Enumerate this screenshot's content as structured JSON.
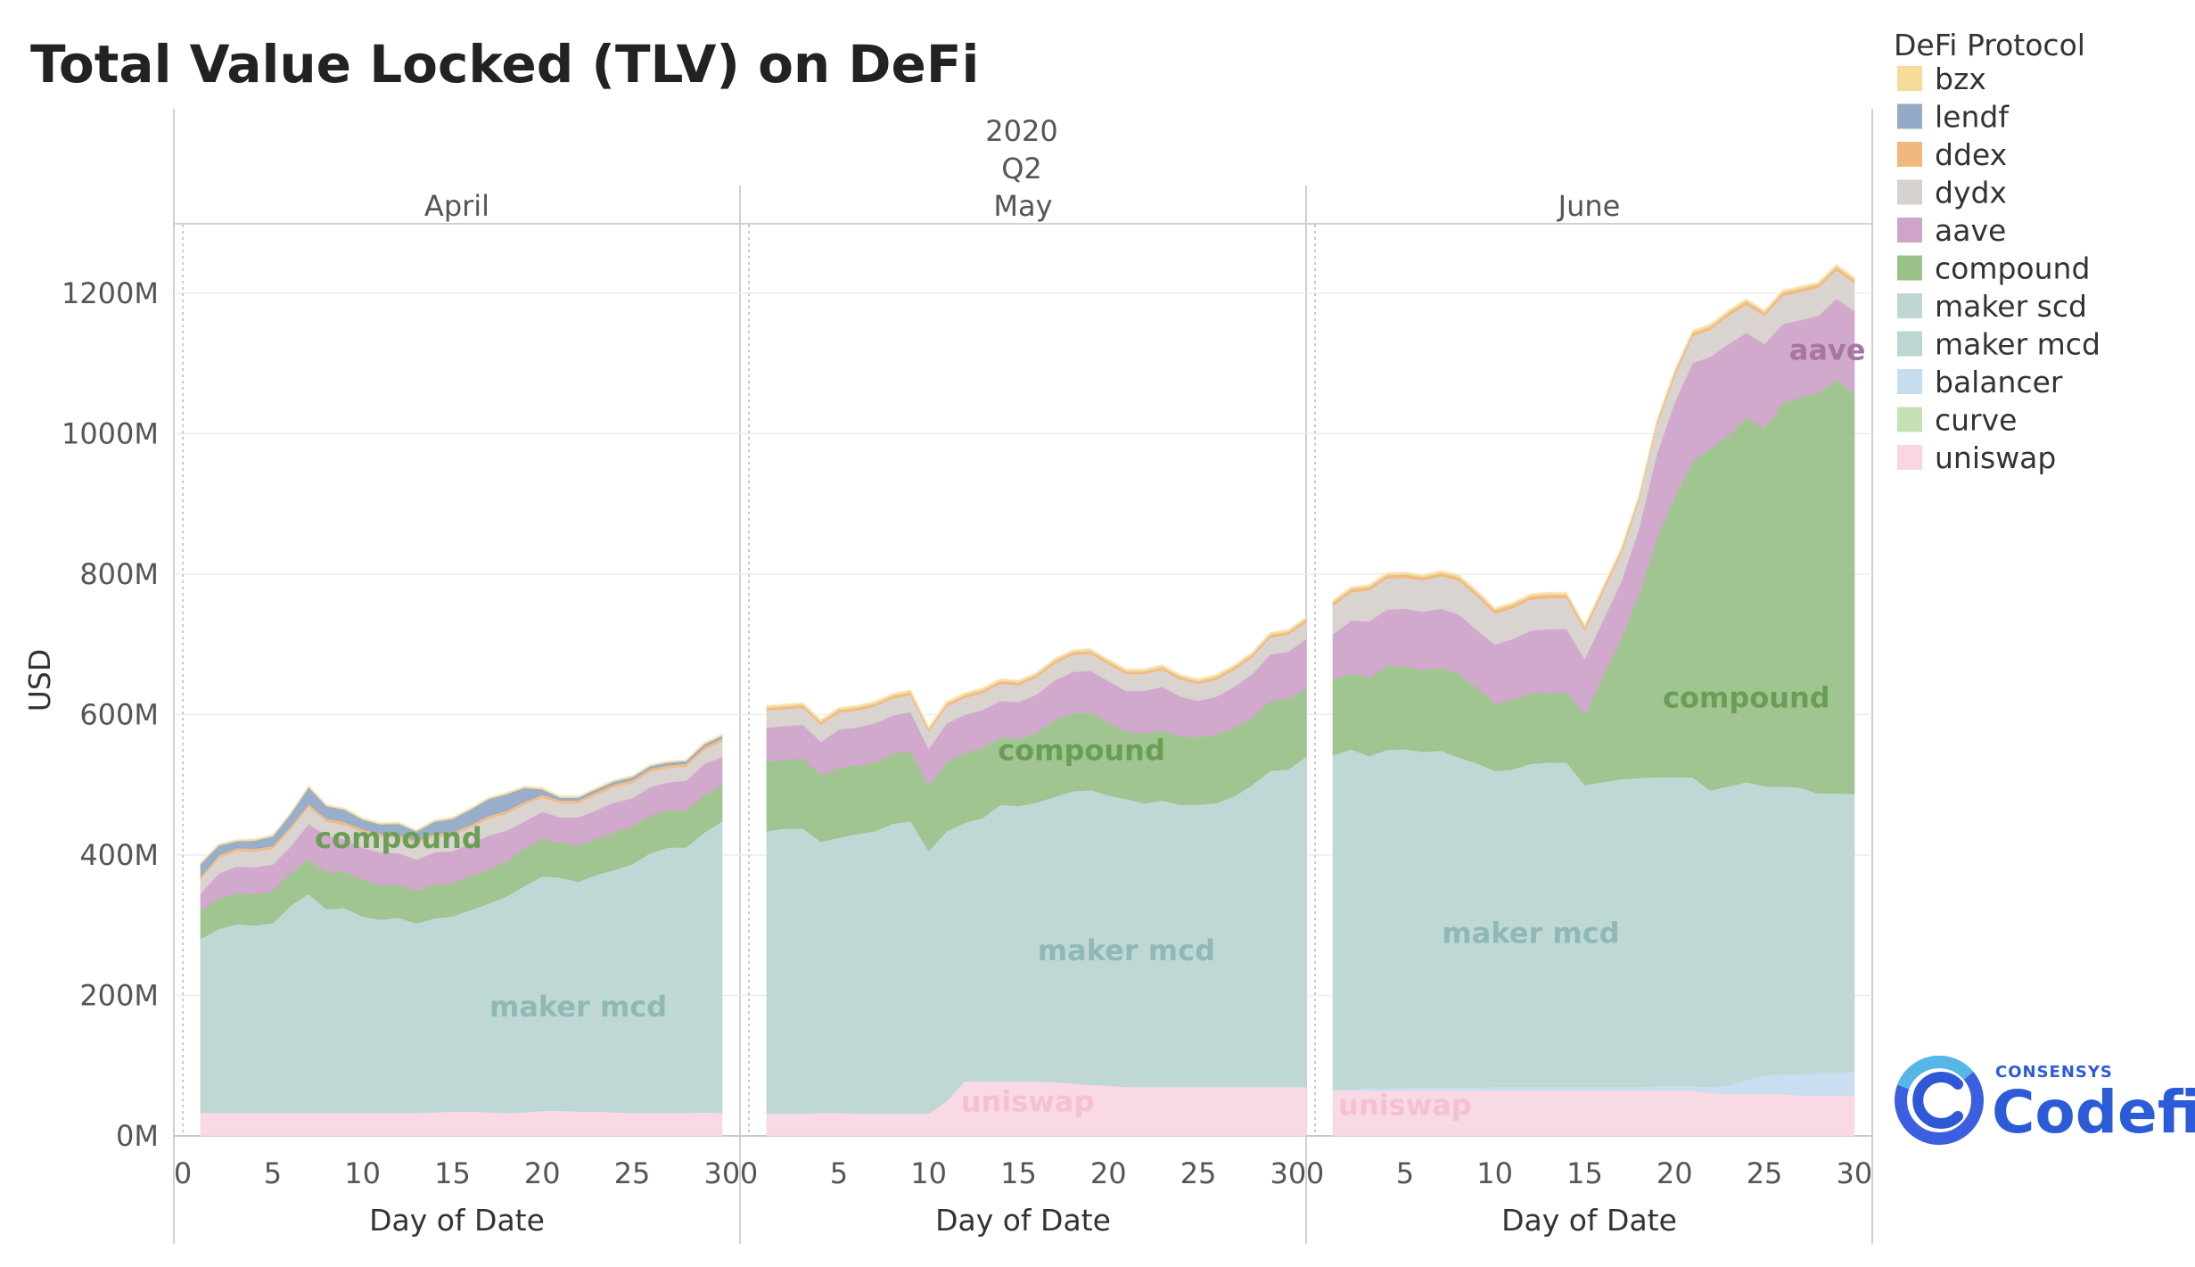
{
  "title": "Total Value Locked (TLV) on DeFi",
  "header": {
    "year": "2020",
    "quarter": "Q2"
  },
  "legend": {
    "title": "DeFi Protocol",
    "items": [
      {
        "label": "bzx",
        "color": "#f5dc9a"
      },
      {
        "label": "lendf",
        "color": "#93abc6"
      },
      {
        "label": "ddex",
        "color": "#f1b77f"
      },
      {
        "label": "dydx",
        "color": "#d7d2ce"
      },
      {
        "label": "aave",
        "color": "#cfa4c9"
      },
      {
        "label": "compound",
        "color": "#9cc28b"
      },
      {
        "label": "maker scd",
        "color": "#bfd6d3"
      },
      {
        "label": "maker mcd",
        "color": "#bcd6d3"
      },
      {
        "label": "balancer",
        "color": "#c6dcef"
      },
      {
        "label": "curve",
        "color": "#c6e2b5"
      },
      {
        "label": "uniswap",
        "color": "#f8d7e3"
      }
    ]
  },
  "logo": {
    "small": "CONSENSYS",
    "big": "Codefi"
  },
  "chart_data": {
    "type": "area",
    "stacked": true,
    "title": "Total Value Locked (TLV) on DeFi",
    "ylabel": "USD",
    "xlabel": "Day of Date",
    "ylim": [
      0,
      1300
    ],
    "yticks": [
      "0M",
      "200M",
      "400M",
      "600M",
      "800M",
      "1000M",
      "1200M"
    ],
    "xticks": [
      "0",
      "5",
      "10",
      "15",
      "20",
      "25",
      "30"
    ],
    "stack_order": [
      "uniswap",
      "curve",
      "balancer",
      "maker mcd",
      "maker scd",
      "compound",
      "aave",
      "dydx",
      "ddex",
      "lendf",
      "bzx"
    ],
    "panels": [
      {
        "month": "April",
        "days": [
          1,
          2,
          3,
          4,
          5,
          6,
          7,
          8,
          9,
          10,
          11,
          12,
          13,
          14,
          15,
          16,
          17,
          18,
          19,
          20,
          21,
          22,
          23,
          24,
          25,
          26,
          27,
          28,
          29,
          30
        ],
        "annotations": [
          {
            "text": "compound",
            "x": 12,
            "y": 410,
            "color": "#6a9e55"
          },
          {
            "text": "maker mcd",
            "x": 22,
            "y": 170,
            "color": "#8fb9b4"
          }
        ],
        "series": {
          "uniswap": [
            33,
            33,
            33,
            33,
            33,
            33,
            33,
            33,
            33,
            33,
            33,
            33,
            33,
            34,
            35,
            35,
            34,
            33,
            34,
            36,
            36,
            35,
            35,
            34,
            33,
            33,
            33,
            33,
            34,
            33
          ],
          "maker mcd": [
            248,
            262,
            269,
            267,
            270,
            295,
            312,
            290,
            292,
            280,
            275,
            278,
            270,
            276,
            278,
            287,
            297,
            308,
            322,
            334,
            332,
            327,
            337,
            345,
            354,
            370,
            378,
            378,
            398,
            415
          ],
          "compound": [
            40,
            44,
            44,
            45,
            46,
            47,
            50,
            53,
            52,
            52,
            50,
            47,
            47,
            48,
            47,
            49,
            49,
            50,
            54,
            54,
            50,
            52,
            52,
            54,
            54,
            54,
            53,
            53,
            54,
            52
          ],
          "aave": [
            25,
            35,
            38,
            38,
            38,
            38,
            50,
            52,
            46,
            46,
            46,
            45,
            44,
            46,
            46,
            46,
            48,
            44,
            38,
            38,
            36,
            40,
            40,
            42,
            40,
            40,
            40,
            42,
            44,
            40
          ],
          "dydx": [
            20,
            22,
            22,
            22,
            22,
            24,
            24,
            20,
            20,
            22,
            22,
            22,
            22,
            22,
            22,
            22,
            24,
            24,
            24,
            20,
            20,
            20,
            22,
            22,
            22,
            22,
            20,
            20,
            20,
            22
          ],
          "ddex": [
            4,
            4,
            4,
            4,
            4,
            4,
            4,
            4,
            4,
            4,
            4,
            4,
            4,
            4,
            4,
            4,
            4,
            4,
            4,
            4,
            4,
            4,
            4,
            4,
            4,
            4,
            4,
            4,
            4,
            4
          ],
          "lendf": [
            18,
            14,
            10,
            12,
            14,
            18,
            24,
            18,
            18,
            14,
            14,
            16,
            14,
            18,
            20,
            22,
            24,
            24,
            20,
            8,
            4,
            4,
            4,
            4,
            4,
            4,
            4,
            4,
            4,
            4
          ],
          "bzx": [
            2,
            2,
            2,
            2,
            2,
            2,
            2,
            2,
            2,
            2,
            2,
            2,
            2,
            2,
            2,
            2,
            2,
            2,
            2,
            2,
            2,
            2,
            2,
            2,
            2,
            2,
            2,
            2,
            2,
            2
          ]
        }
      },
      {
        "month": "May",
        "days": [
          1,
          2,
          3,
          4,
          5,
          6,
          7,
          8,
          9,
          10,
          11,
          12,
          13,
          14,
          15,
          16,
          17,
          18,
          19,
          20,
          21,
          22,
          23,
          24,
          25,
          26,
          27,
          28,
          29,
          30,
          31
        ],
        "annotations": [
          {
            "text": "compound",
            "x": 18.5,
            "y": 535,
            "color": "#6a9e55"
          },
          {
            "text": "uniswap",
            "x": 15.5,
            "y": 35,
            "color": "#f4c0d2"
          },
          {
            "text": "maker mcd",
            "x": 21,
            "y": 250,
            "color": "#8fb9b4"
          }
        ],
        "series": {
          "uniswap": [
            32,
            32,
            32,
            33,
            33,
            32,
            32,
            32,
            32,
            32,
            50,
            78,
            78,
            78,
            78,
            78,
            77,
            75,
            73,
            72,
            70,
            70,
            70,
            70,
            70,
            70,
            70,
            70,
            70,
            70,
            70
          ],
          "maker mcd": [
            402,
            406,
            406,
            386,
            392,
            398,
            402,
            413,
            416,
            374,
            384,
            368,
            375,
            394,
            392,
            397,
            406,
            416,
            420,
            413,
            410,
            404,
            408,
            402,
            402,
            404,
            414,
            430,
            450,
            452,
            470
          ],
          "compound": [
            100,
            98,
            100,
            95,
            100,
            98,
            98,
            100,
            100,
            92,
            100,
            100,
            100,
            96,
            96,
            100,
            110,
            112,
            110,
            105,
            96,
            100,
            100,
            98,
            96,
            98,
            98,
            96,
            100,
            100,
            98
          ],
          "aave": [
            48,
            48,
            48,
            48,
            54,
            54,
            56,
            54,
            56,
            54,
            54,
            54,
            54,
            52,
            52,
            54,
            56,
            58,
            60,
            58,
            58,
            60,
            62,
            56,
            52,
            54,
            58,
            62,
            66,
            68,
            70
          ],
          "dydx": [
            24,
            24,
            24,
            24,
            24,
            24,
            24,
            24,
            24,
            24,
            24,
            24,
            24,
            24,
            24,
            24,
            24,
            24,
            24,
            24,
            24,
            24,
            24,
            24,
            24,
            24,
            24,
            24,
            24,
            24,
            24
          ],
          "ddex": [
            4,
            4,
            4,
            4,
            4,
            4,
            4,
            4,
            4,
            4,
            4,
            4,
            4,
            4,
            4,
            4,
            4,
            4,
            4,
            4,
            4,
            4,
            4,
            4,
            4,
            4,
            4,
            4,
            4,
            4,
            4
          ],
          "lendf": [
            0,
            0,
            0,
            0,
            0,
            0,
            0,
            0,
            0,
            0,
            0,
            0,
            0,
            0,
            0,
            0,
            0,
            0,
            0,
            0,
            0,
            0,
            0,
            0,
            0,
            0,
            0,
            0,
            0,
            0,
            0
          ],
          "bzx": [
            3,
            3,
            3,
            3,
            3,
            3,
            3,
            3,
            3,
            3,
            3,
            3,
            3,
            3,
            3,
            3,
            3,
            3,
            3,
            3,
            3,
            3,
            3,
            3,
            3,
            3,
            3,
            3,
            3,
            3,
            3
          ]
        }
      },
      {
        "month": "June",
        "days": [
          1,
          2,
          3,
          4,
          5,
          6,
          7,
          8,
          9,
          10,
          11,
          12,
          13,
          14,
          15,
          16,
          17,
          18,
          19,
          20,
          21,
          22,
          23,
          24,
          25,
          26,
          27,
          28,
          29,
          30
        ],
        "annotations": [
          {
            "text": "compound",
            "x": 24,
            "y": 610,
            "color": "#6a9e55"
          },
          {
            "text": "aave",
            "x": 28.5,
            "y": 1105,
            "color": "#a676a0"
          },
          {
            "text": "uniswap",
            "x": 5,
            "y": 30,
            "color": "#f4c0d2"
          },
          {
            "text": "maker mcd",
            "x": 12,
            "y": 275,
            "color": "#8fb9b4"
          }
        ],
        "series": {
          "uniswap": [
            65,
            65,
            65,
            65,
            65,
            65,
            65,
            65,
            65,
            65,
            65,
            65,
            65,
            65,
            65,
            65,
            65,
            65,
            65,
            65,
            65,
            62,
            60,
            60,
            60,
            60,
            58,
            58,
            58,
            58
          ],
          "curve": [
            0,
            0,
            0,
            0,
            0,
            0,
            0,
            0,
            0,
            0,
            0,
            0,
            0,
            0,
            0,
            0,
            0,
            0,
            0,
            0,
            0,
            0,
            0,
            0,
            0,
            0,
            0,
            0,
            0,
            0
          ],
          "balancer": [
            2,
            2,
            3,
            3,
            4,
            4,
            4,
            4,
            4,
            5,
            5,
            5,
            5,
            5,
            5,
            5,
            5,
            5,
            6,
            6,
            6,
            8,
            12,
            20,
            26,
            28,
            30,
            32,
            32,
            34
          ],
          "maker mcd": [
            475,
            484,
            473,
            482,
            482,
            478,
            480,
            470,
            462,
            450,
            452,
            460,
            462,
            462,
            430,
            434,
            438,
            440,
            440,
            440,
            440,
            422,
            426,
            424,
            412,
            410,
            408,
            398,
            398,
            395
          ],
          "compound": [
            108,
            108,
            112,
            120,
            118,
            116,
            118,
            120,
            108,
            96,
            100,
            100,
            100,
            100,
            100,
            150,
            200,
            260,
            340,
            400,
            450,
            488,
            500,
            520,
            510,
            546,
            556,
            570,
            590,
            570
          ],
          "aave": [
            65,
            75,
            80,
            80,
            82,
            84,
            84,
            84,
            82,
            84,
            86,
            90,
            90,
            90,
            80,
            80,
            80,
            94,
            120,
            134,
            140,
            130,
            130,
            120,
            120,
            112,
            110,
            110,
            115,
            118
          ],
          "dydx": [
            40,
            40,
            44,
            44,
            44,
            44,
            46,
            48,
            48,
            44,
            44,
            44,
            44,
            44,
            40,
            40,
            40,
            40,
            40,
            38,
            38,
            38,
            40,
            40,
            40,
            40,
            40,
            40,
            40,
            40
          ],
          "ddex": [
            5,
            5,
            5,
            5,
            5,
            5,
            5,
            5,
            5,
            5,
            5,
            5,
            5,
            5,
            5,
            5,
            5,
            5,
            5,
            5,
            5,
            5,
            5,
            5,
            5,
            5,
            5,
            5,
            5,
            5
          ],
          "lendf": [
            0,
            0,
            0,
            0,
            0,
            0,
            0,
            0,
            0,
            0,
            0,
            0,
            0,
            0,
            0,
            0,
            0,
            0,
            0,
            0,
            0,
            0,
            0,
            0,
            0,
            0,
            0,
            0,
            0,
            0
          ],
          "bzx": [
            3,
            3,
            3,
            3,
            3,
            3,
            3,
            3,
            3,
            3,
            3,
            3,
            3,
            3,
            3,
            3,
            3,
            3,
            3,
            3,
            3,
            3,
            3,
            3,
            3,
            3,
            3,
            3,
            3,
            3
          ]
        }
      }
    ]
  }
}
